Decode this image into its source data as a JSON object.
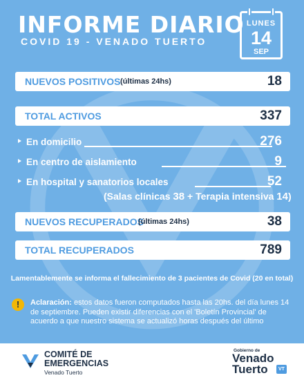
{
  "header": {
    "title": "INFORME DIARIO",
    "subtitle": "COVID 19 - VENADO TUERTO",
    "calendar": {
      "day": "LUNES",
      "date": "14",
      "month": "SEP"
    }
  },
  "nuevos_positivos": {
    "label": "NUEVOS POSITIVOS",
    "note": "(últimas 24hs)",
    "value": "18"
  },
  "total_activos": {
    "label": "TOTAL ACTIVOS",
    "value": "337"
  },
  "activos_detalle": [
    {
      "label": "En domicilio",
      "value": "276"
    },
    {
      "label": "En centro de aislamiento",
      "value": "9"
    },
    {
      "label": "En hospital y sanatorios locales",
      "value": "52"
    }
  ],
  "salas": {
    "label_salas": "(Salas clínicas",
    "value_salas": "38",
    "plus": "+",
    "label_terapia": "Terapia intensiva",
    "value_terapia": "14",
    "close": ")"
  },
  "nuevos_recuperados": {
    "label": "NUEVOS RECUPERADOS",
    "note": "(últimas 24hs)",
    "value": "38"
  },
  "total_recuperados": {
    "label": "TOTAL RECUPERADOS",
    "value": "789"
  },
  "fallecimiento": "Lamentablemente se informa el fallecimiento de 3 pacientes de Covid (20 en total)",
  "aclaracion": {
    "title": "Aclaración:",
    "text": "estos datos fueron computados hasta las 20hs. del día lunes 14 de septiembre. Pueden existir diferencias con el 'Boletín Provincial' de acuerdo a que nuestro sistema se actualizó horas después del último"
  },
  "footer": {
    "comite_line1": "COMITÉ DE",
    "comite_line2": "EMERGENCIAS",
    "comite_sub": "Venado Tuerto",
    "gobierno": "Gobierno de",
    "venado": "Venado",
    "tuerto": "Tuerto",
    "badge": "VT"
  },
  "colors": {
    "background": "#6fb0e6",
    "accent": "#4e9be0",
    "dark": "#1d2f45",
    "warning": "#f2b705"
  }
}
